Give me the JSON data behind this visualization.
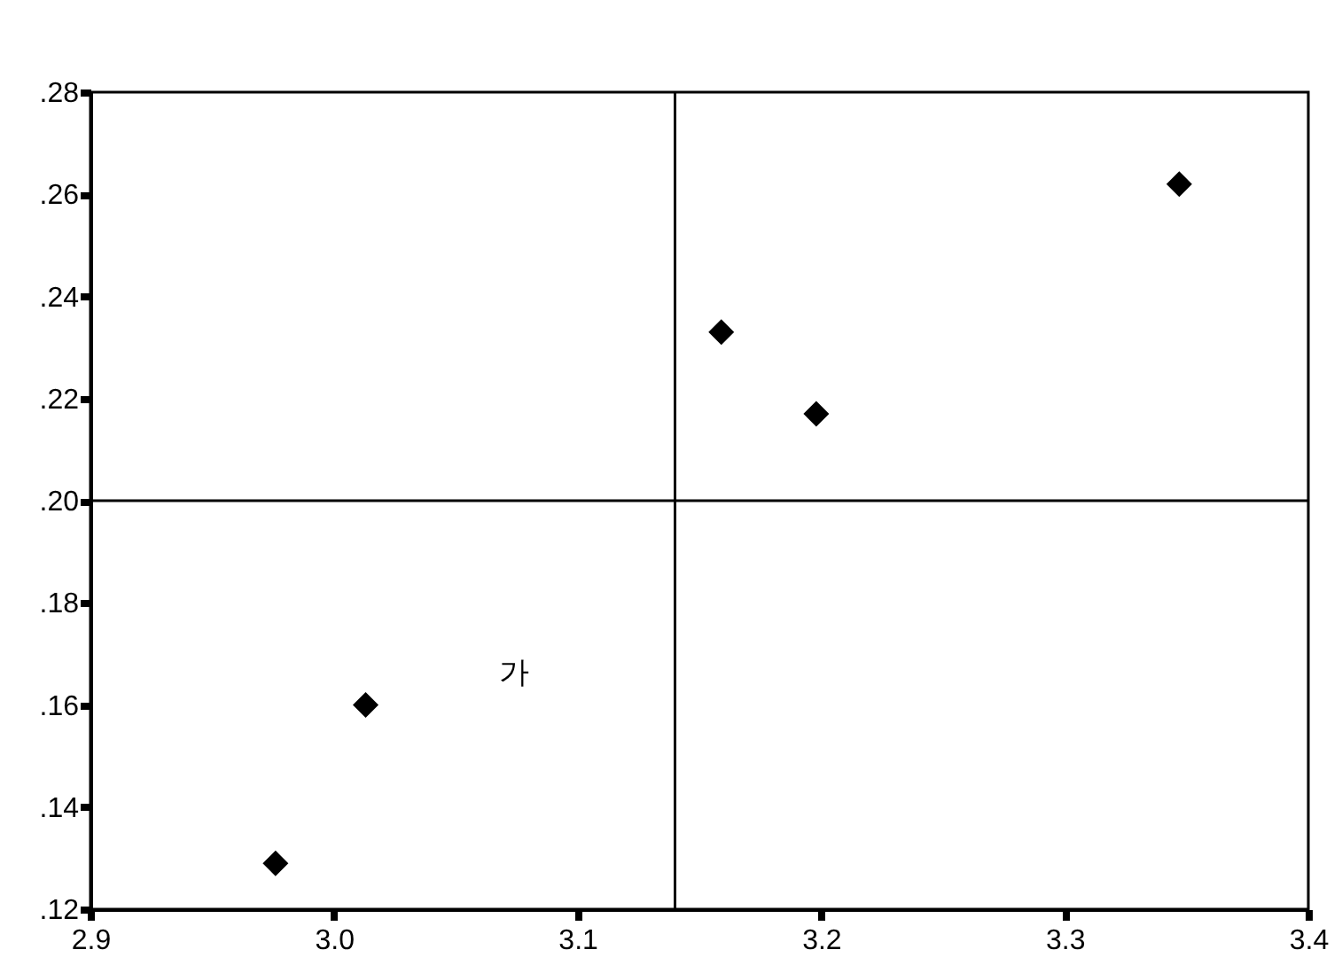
{
  "chart_data": {
    "type": "scatter",
    "x": [
      2.976,
      3.013,
      3.159,
      3.198,
      3.347
    ],
    "values": [
      0.129,
      0.16,
      0.233,
      0.217,
      0.262
    ],
    "color": "#000000",
    "marker": "diamond",
    "xlim": [
      2.9,
      3.4
    ],
    "ylim": [
      0.12,
      0.28
    ],
    "xticks": [
      2.9,
      {
        "value": 3.0,
        "label": "3.0"
      },
      3.1,
      3.2,
      3.3,
      3.4
    ],
    "yticks": [
      {
        "value": 0.12,
        "label": ".12"
      },
      {
        "value": 0.14,
        "label": ".14"
      },
      {
        "value": 0.16,
        "label": ".16"
      },
      {
        "value": 0.18,
        "label": ".18"
      },
      {
        "value": 0.2,
        "label": ".20"
      },
      {
        "value": 0.22,
        "label": ".22"
      },
      {
        "value": 0.24,
        "label": ".24"
      },
      {
        "value": 0.26,
        "label": ".26"
      },
      {
        "value": 0.28,
        "label": ".28"
      }
    ],
    "ref_lines": [
      {
        "axis": "x",
        "value": 3.14,
        "color": "#000000"
      },
      {
        "axis": "y",
        "value": 0.2,
        "color": "#000000"
      }
    ],
    "annotations": [
      "가"
    ]
  }
}
